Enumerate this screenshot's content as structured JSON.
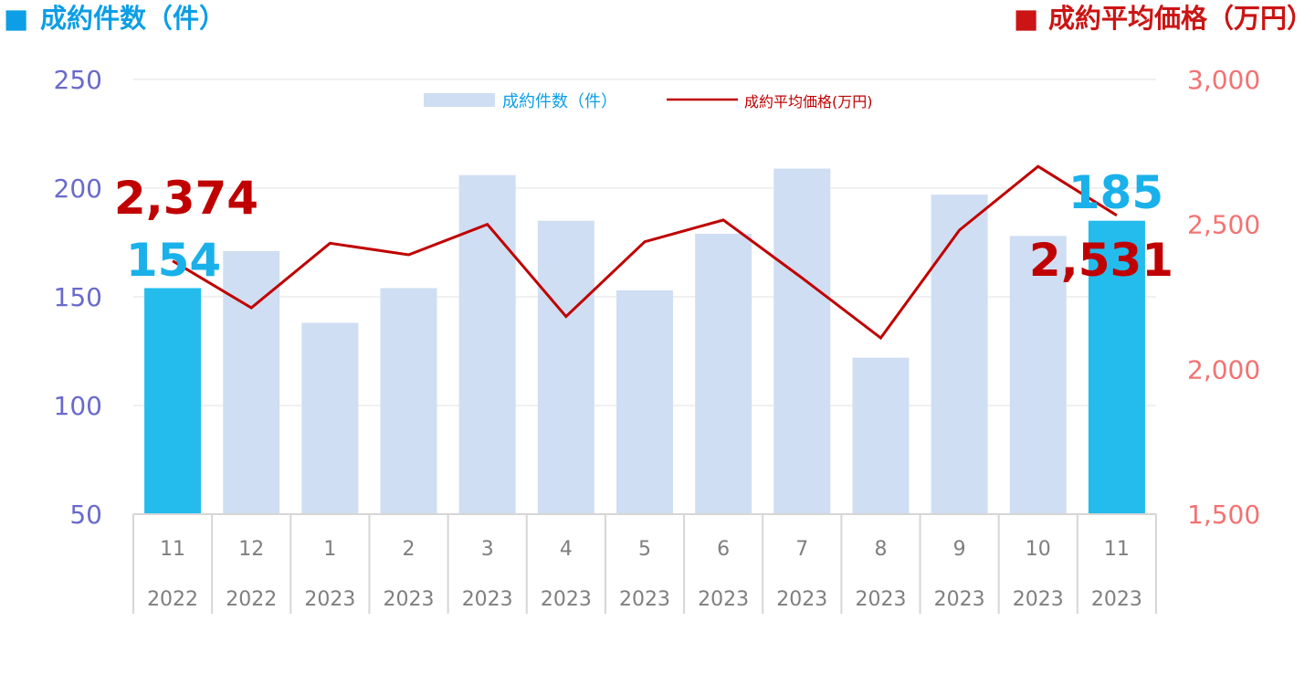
{
  "colors": {
    "bar": "#cfdef2",
    "bar_highlight": "#23bcec",
    "line": "#c00000",
    "left_axis": "#6a6acc",
    "right_axis": "#f47272",
    "left_title": "#0c9ee6",
    "right_title": "#cc1414",
    "callout_blue": "#1ab1ea",
    "callout_red": "#c00000",
    "grid": "#e1e1e1"
  },
  "left_title": {
    "marker": "■",
    "text": "成約件数（件）"
  },
  "right_title": {
    "marker": "■",
    "text": "成約平均価格（万円）"
  },
  "chart_data": {
    "type": "bar",
    "categories": [
      [
        "11",
        "2022"
      ],
      [
        "12",
        "2022"
      ],
      [
        "1",
        "2023"
      ],
      [
        "2",
        "2023"
      ],
      [
        "3",
        "2023"
      ],
      [
        "4",
        "2023"
      ],
      [
        "5",
        "2023"
      ],
      [
        "6",
        "2023"
      ],
      [
        "7",
        "2023"
      ],
      [
        "8",
        "2023"
      ],
      [
        "9",
        "2023"
      ],
      [
        "10",
        "2023"
      ],
      [
        "11",
        "2023"
      ]
    ],
    "series": [
      {
        "name": "成約件数（件）",
        "type": "bar",
        "axis": "left",
        "values": [
          154,
          171,
          138,
          154,
          206,
          185,
          153,
          179,
          209,
          122,
          197,
          178,
          185
        ],
        "highlight": [
          0,
          12
        ]
      },
      {
        "name": "成約平均価格(万円)",
        "type": "line",
        "axis": "right",
        "values": [
          2374,
          2212,
          2435,
          2395,
          2500,
          2182,
          2440,
          2515,
          2315,
          2108,
          2480,
          2700,
          2531
        ]
      }
    ],
    "left_axis": {
      "ylim": [
        50,
        250
      ],
      "ticks": [
        "50",
        "100",
        "150",
        "200",
        "250"
      ]
    },
    "right_axis": {
      "ylim": [
        1500,
        3000
      ],
      "ticks": [
        "1,500",
        "2,000",
        "2,500",
        "3,000"
      ]
    },
    "grid": true,
    "legend": {
      "position": "top-center"
    },
    "callouts": [
      {
        "text": "154",
        "index": 0,
        "series": "bar",
        "color": "blue"
      },
      {
        "text": "2,374",
        "index": 0,
        "series": "line",
        "color": "red"
      },
      {
        "text": "185",
        "index": 12,
        "series": "bar",
        "color": "blue"
      },
      {
        "text": "2,531",
        "index": 12,
        "series": "line",
        "color": "red"
      }
    ]
  }
}
